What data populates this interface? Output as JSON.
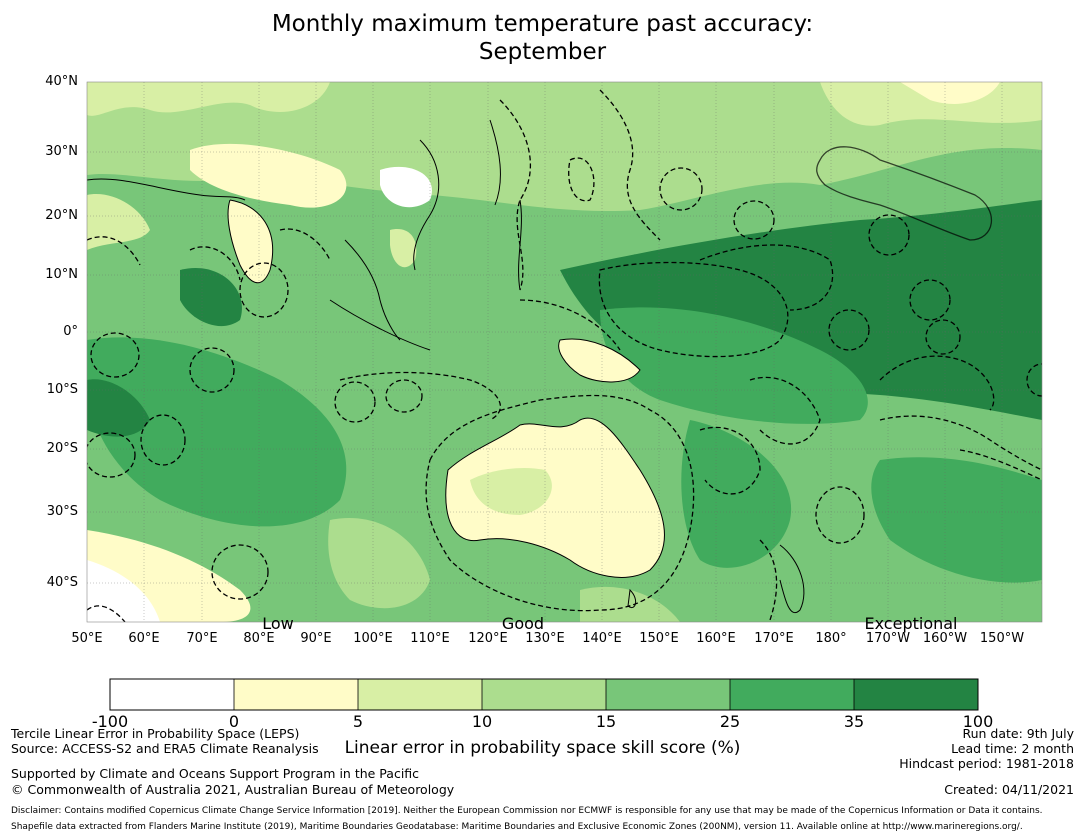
{
  "title": {
    "line1": "Monthly maximum temperature past accuracy:",
    "line2": "September"
  },
  "map": {
    "lat_labels": [
      "40°N",
      "30°N",
      "20°N",
      "10°N",
      "0°",
      "10°S",
      "20°S",
      "30°S",
      "40°S"
    ],
    "lon_labels": [
      "50°E",
      "60°E",
      "70°E",
      "80°E",
      "90°E",
      "100°E",
      "110°E",
      "120°E",
      "130°E",
      "140°E",
      "150°E",
      "160°E",
      "170°E",
      "180°",
      "170°W",
      "160°W",
      "150°W"
    ],
    "categories": [
      "Low",
      "Good",
      "Exceptional"
    ],
    "extent": {
      "lon_min": 50,
      "lon_max": 216,
      "lat_min": -46,
      "lat_max": 40
    }
  },
  "colorbar": {
    "ticks": [
      "-100",
      "0",
      "5",
      "10",
      "15",
      "25",
      "35",
      "100"
    ],
    "colors": [
      "#ffffff",
      "#fffcc8",
      "#d8efa5",
      "#acdd8e",
      "#78c679",
      "#41ab5d",
      "#238443"
    ],
    "label": "Linear error in probability space skill score (%)"
  },
  "footer": {
    "left": [
      "Tercile Linear Error in Probability Space (LEPS)",
      "Source: ACCESS-S2 and ERA5 Climate Reanalysis",
      "Supported by Climate and Oceans Support Program in the Pacific",
      "© Commonwealth of Australia 2021, Australian Bureau of Meteorology"
    ],
    "right": [
      "Run date: 9th July",
      "Lead time: 2 month",
      "Hindcast period: 1981-2018",
      "Created: 04/11/2021"
    ],
    "disclaimer": [
      "Disclaimer: Contains modified Copernicus Climate Change Service Information [2019]. Neither the European Commission nor ECMWF is responsible for any use that may be made of the Copernicus Information or Data it contains.",
      "Shapefile data extracted from Flanders Marine Institute (2019), Maritime Boundaries Geodatabase: Maritime Boundaries and Exclusive Economic Zones (200NM), version 11. Available online at http://www.marineregions.org/."
    ]
  }
}
